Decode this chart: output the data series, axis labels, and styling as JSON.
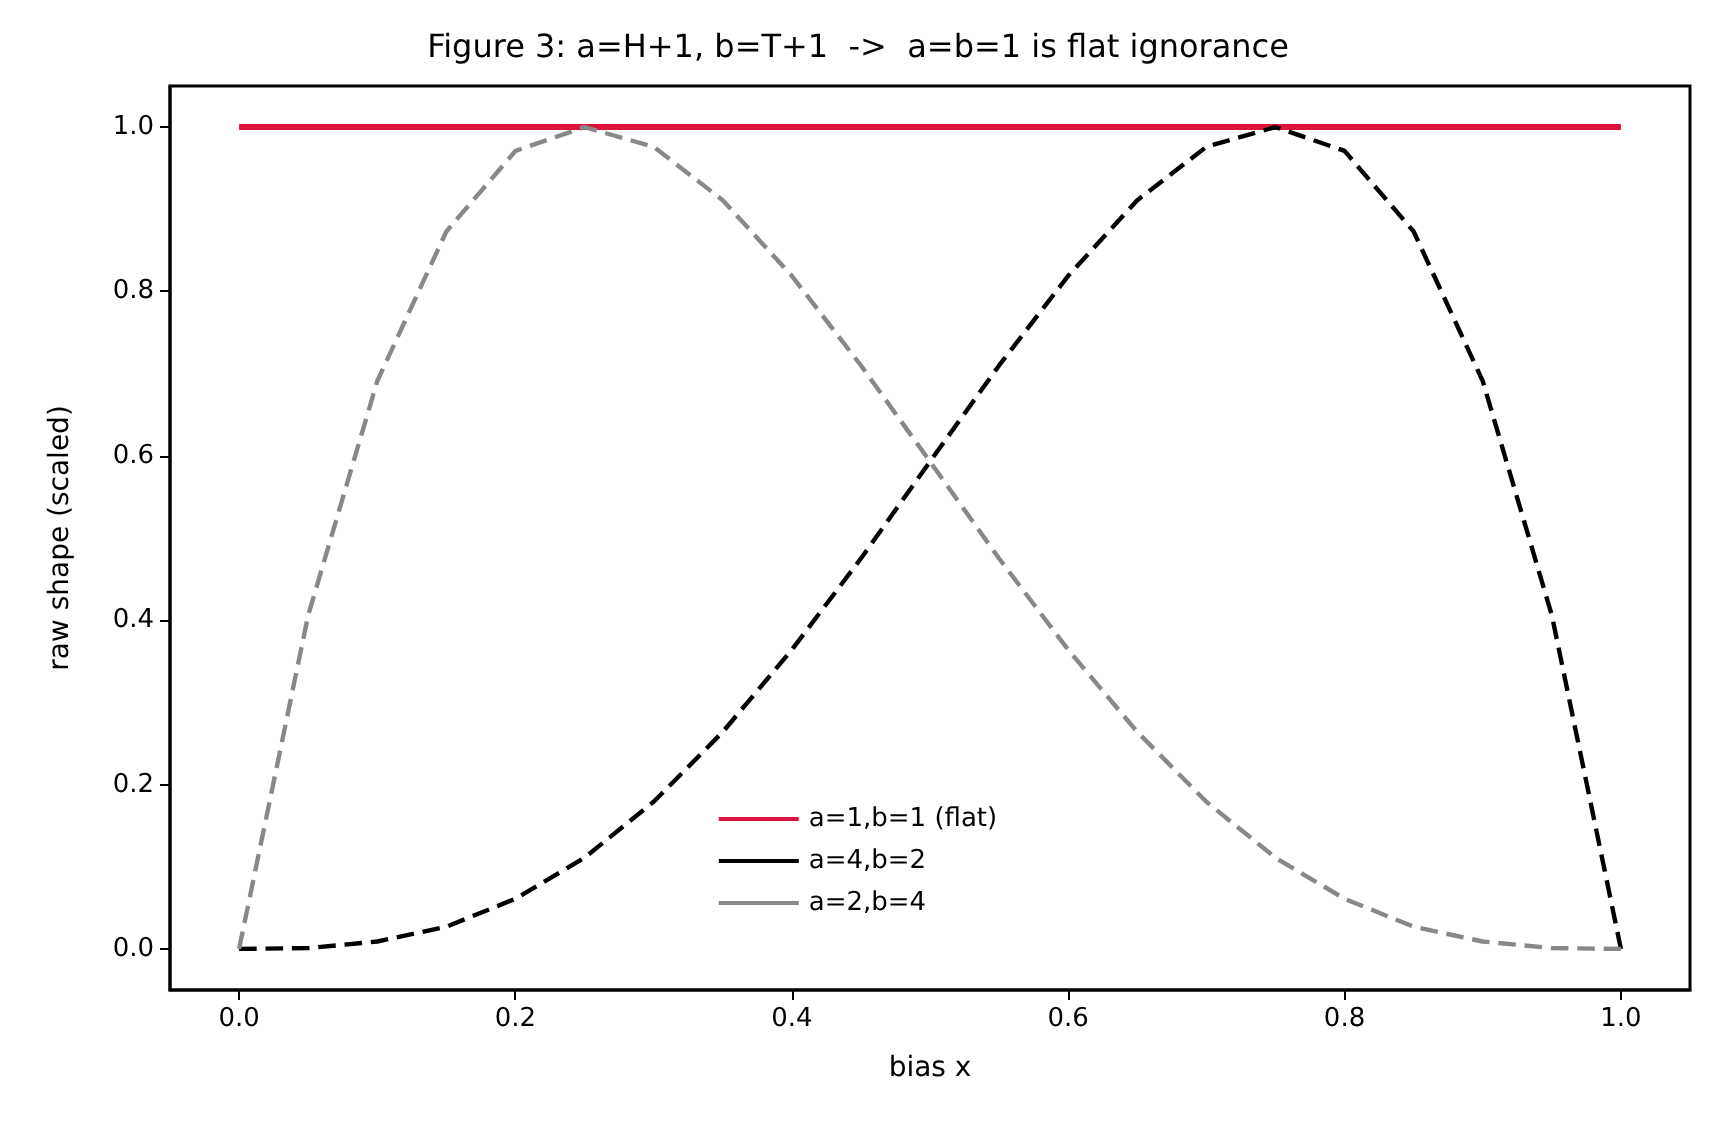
{
  "chart_data": {
    "type": "line",
    "title": "Figure 3: a=H+1, b=T+1  ->  a=b=1 is flat ignorance",
    "xlabel": "bias x",
    "ylabel": "raw shape (scaled)",
    "x": [
      0,
      0.05,
      0.1,
      0.15,
      0.2,
      0.25,
      0.3,
      0.35,
      0.4,
      0.45,
      0.5,
      0.55,
      0.6,
      0.65,
      0.7,
      0.75,
      0.8,
      0.85,
      0.9,
      0.95,
      1
    ],
    "series": [
      {
        "name": "a=1,b=1 (flat)",
        "color": "#dc143c",
        "line_style": "solid",
        "x": [
          0,
          1
        ],
        "values": [
          1,
          1
        ]
      },
      {
        "name": "a=4,b=2",
        "color": "#000000",
        "line_style": "dashed",
        "values": [
          0,
          0.001,
          0.009,
          0.027,
          0.061,
          0.111,
          0.179,
          0.264,
          0.364,
          0.475,
          0.593,
          0.71,
          0.819,
          0.911,
          0.976,
          1,
          0.971,
          0.873,
          0.691,
          0.406,
          0
        ]
      },
      {
        "name": "a=2,b=4",
        "color": "#888888",
        "line_style": "dashed",
        "values": [
          0,
          0.406,
          0.691,
          0.873,
          0.971,
          1,
          0.976,
          0.911,
          0.819,
          0.71,
          0.593,
          0.475,
          0.364,
          0.264,
          0.179,
          0.111,
          0.061,
          0.027,
          0.009,
          0.001,
          0
        ]
      }
    ],
    "xlim": [
      -0.05,
      1.05
    ],
    "ylim": [
      -0.05,
      1.05
    ],
    "xticks": [
      {
        "value": 0,
        "label": "0.0"
      },
      {
        "value": 0.2,
        "label": "0.2"
      },
      {
        "value": 0.4,
        "label": "0.4"
      },
      {
        "value": 0.6,
        "label": "0.6"
      },
      {
        "value": 0.8,
        "label": "0.8"
      },
      {
        "value": 1,
        "label": "1.0"
      }
    ],
    "yticks": [
      {
        "value": 0,
        "label": "0.0"
      },
      {
        "value": 0.2,
        "label": "0.2"
      },
      {
        "value": 0.4,
        "label": "0.4"
      },
      {
        "value": 0.6,
        "label": "0.6"
      },
      {
        "value": 0.8,
        "label": "0.8"
      },
      {
        "value": 1,
        "label": "1.0"
      }
    ],
    "legend": "bottom",
    "marker": "none",
    "grid": false
  }
}
